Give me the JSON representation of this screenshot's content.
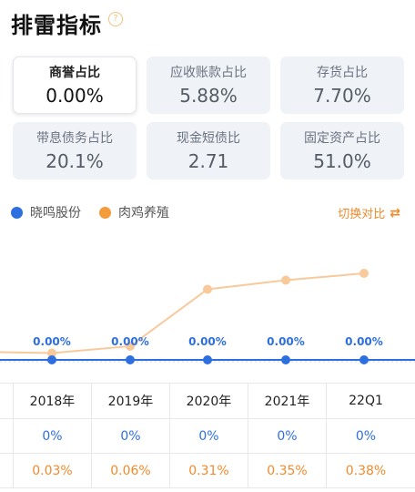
{
  "header": {
    "title": "排雷指标",
    "help_icon": "question-circle-icon"
  },
  "cards": [
    {
      "label": "商誉占比",
      "value": "0.00%",
      "active": true
    },
    {
      "label": "应收账款占比",
      "value": "5.88%"
    },
    {
      "label": "存货占比",
      "value": "7.70%"
    },
    {
      "label": "带息债务占比",
      "value": "20.1%"
    },
    {
      "label": "现金短债比",
      "value": "2.71"
    },
    {
      "label": "固定资产占比",
      "value": "51.0%"
    }
  ],
  "legend": [
    {
      "name": "晓鸣股份",
      "color": "#2e6fe0"
    },
    {
      "name": "肉鸡养殖",
      "color": "#f49b3b"
    }
  ],
  "switch": {
    "label": "切换对比",
    "icon": "swap-icon"
  },
  "chart_data": {
    "type": "line",
    "categories": [
      "2018年",
      "2019年",
      "2020年",
      "2021年",
      "22Q1"
    ],
    "series": [
      {
        "name": "晓鸣股份",
        "color": "#2e6fe0",
        "values": [
          0,
          0,
          0,
          0,
          0
        ],
        "data_labels": [
          "0.00%",
          "0.00%",
          "0.00%",
          "0.00%",
          "0.00%"
        ]
      },
      {
        "name": "肉鸡养殖",
        "color": "#f8c99a",
        "values": [
          0.03,
          0.06,
          0.31,
          0.35,
          0.38
        ]
      }
    ]
  },
  "table": {
    "years": [
      "2018年",
      "2019年",
      "2020年",
      "2021年",
      "22Q1"
    ],
    "company_row": [
      "0%",
      "0%",
      "0%",
      "0%",
      "0%"
    ],
    "industry_row": [
      "0.03%",
      "0.06%",
      "0.31%",
      "0.35%",
      "0.38%"
    ]
  }
}
